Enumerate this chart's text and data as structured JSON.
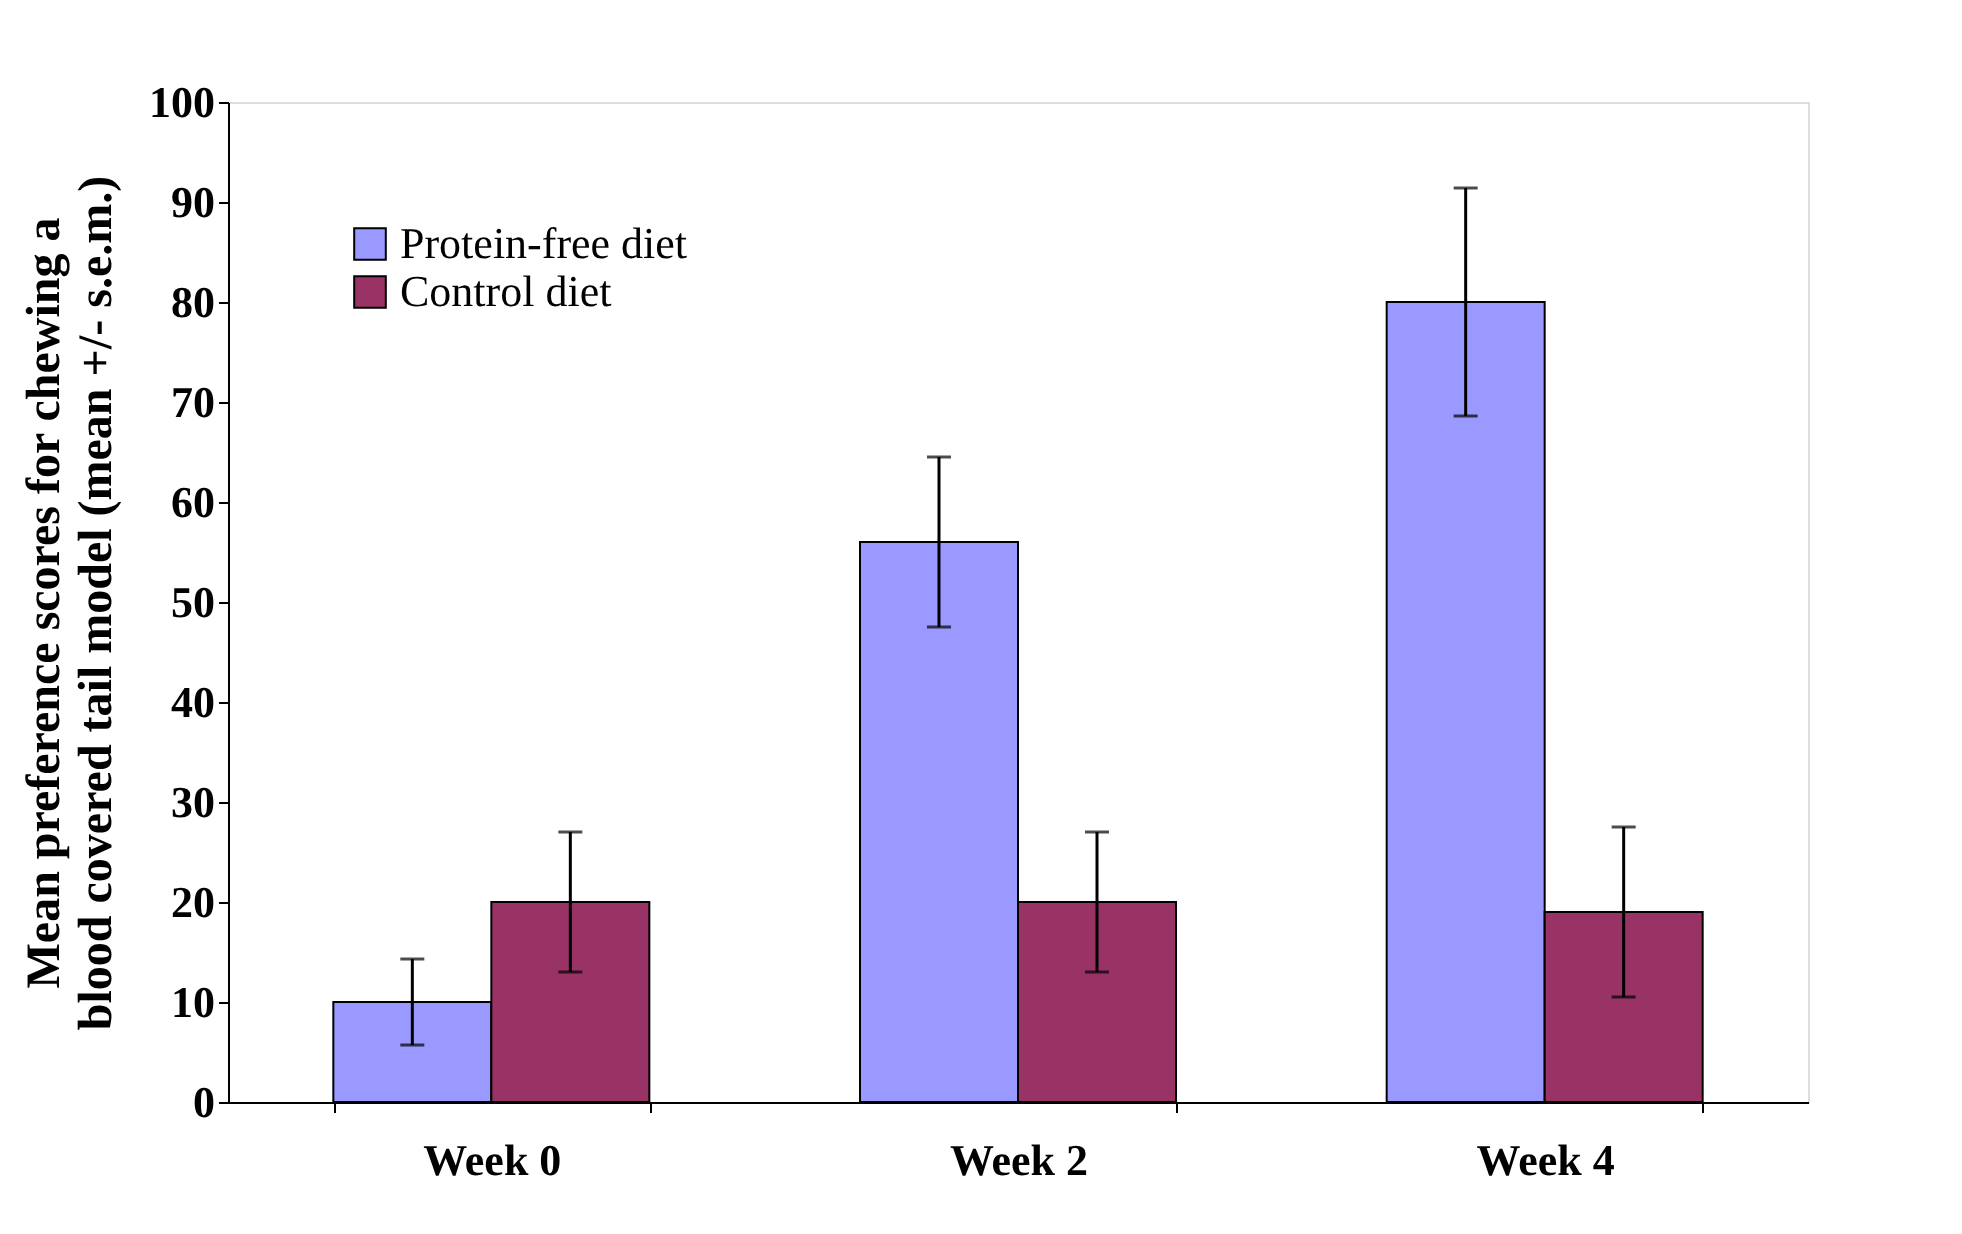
{
  "chart_data": {
    "type": "bar",
    "ylabel": "Mean preference scores for chewing a\nblood covered tail model (mean +/- s.e.m.)",
    "categories": [
      "Week 0",
      "Week 2",
      "Week 4"
    ],
    "series": [
      {
        "name": "Protein-free diet",
        "color": "#9999ff",
        "values": [
          10,
          56,
          80
        ],
        "errors": [
          4.3,
          8.5,
          11.4
        ]
      },
      {
        "name": "Control diet",
        "color": "#993366",
        "values": [
          20,
          20,
          19
        ],
        "errors": [
          7,
          7,
          8.5
        ]
      }
    ],
    "ylim": [
      0,
      100
    ],
    "yticks": [
      0,
      10,
      20,
      30,
      40,
      50,
      60,
      70,
      80,
      90,
      100
    ],
    "grid": false,
    "legend": "top left"
  }
}
